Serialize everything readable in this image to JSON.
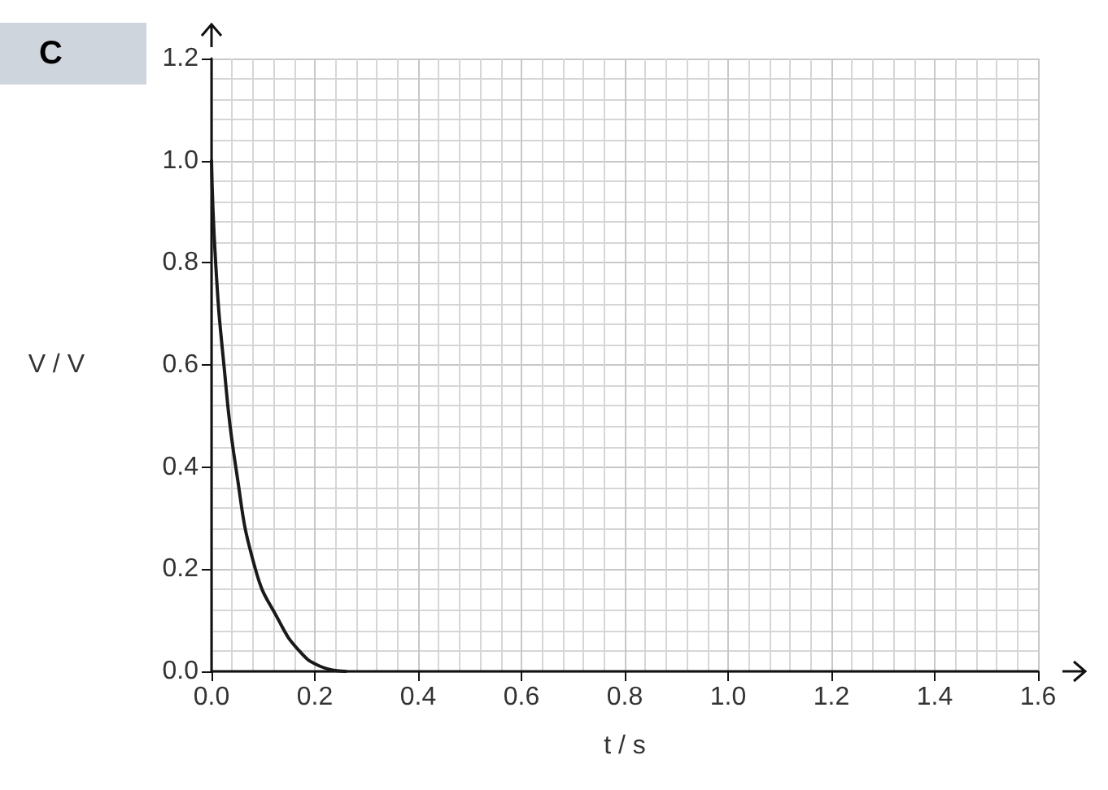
{
  "chart_data": {
    "type": "line",
    "title": "C",
    "xlabel": "t / s",
    "ylabel": "V / V",
    "x": [
      0,
      0.008,
      0.024,
      0.047,
      0.085,
      0.13,
      0.17,
      0.21,
      0.26
    ],
    "series": [
      {
        "color": "#1a1a1a",
        "values": [
          1.0,
          0.8,
          0.6,
          0.4,
          0.2,
          0.1,
          0.04,
          0.01,
          0
        ]
      }
    ],
    "xlim": [
      0,
      1.6
    ],
    "ylim": [
      0,
      1.2
    ],
    "xticks": [
      {
        "value": 0,
        "label": "0.0"
      },
      {
        "value": 0.2,
        "label": "0.2"
      },
      {
        "value": 0.4,
        "label": "0.4"
      },
      {
        "value": 0.6,
        "label": "0.6"
      },
      {
        "value": 0.8,
        "label": "0.8"
      },
      {
        "value": 1.0,
        "label": "1.0"
      },
      {
        "value": 1.2,
        "label": "1.2"
      },
      {
        "value": 1.4,
        "label": "1.4"
      },
      {
        "value": 1.6,
        "label": "1.6"
      }
    ],
    "yticks": [
      {
        "value": 0,
        "label": "0.0"
      },
      {
        "value": 0.2,
        "label": "0.2"
      },
      {
        "value": 0.4,
        "label": "0.4"
      },
      {
        "value": 0.6,
        "label": "0.6"
      },
      {
        "value": 0.8,
        "label": "0.8"
      },
      {
        "value": 1.0,
        "label": "1.0"
      },
      {
        "value": 1.2,
        "label": "1.2"
      }
    ],
    "grid": true,
    "marker": "none",
    "line_style": "solid"
  }
}
